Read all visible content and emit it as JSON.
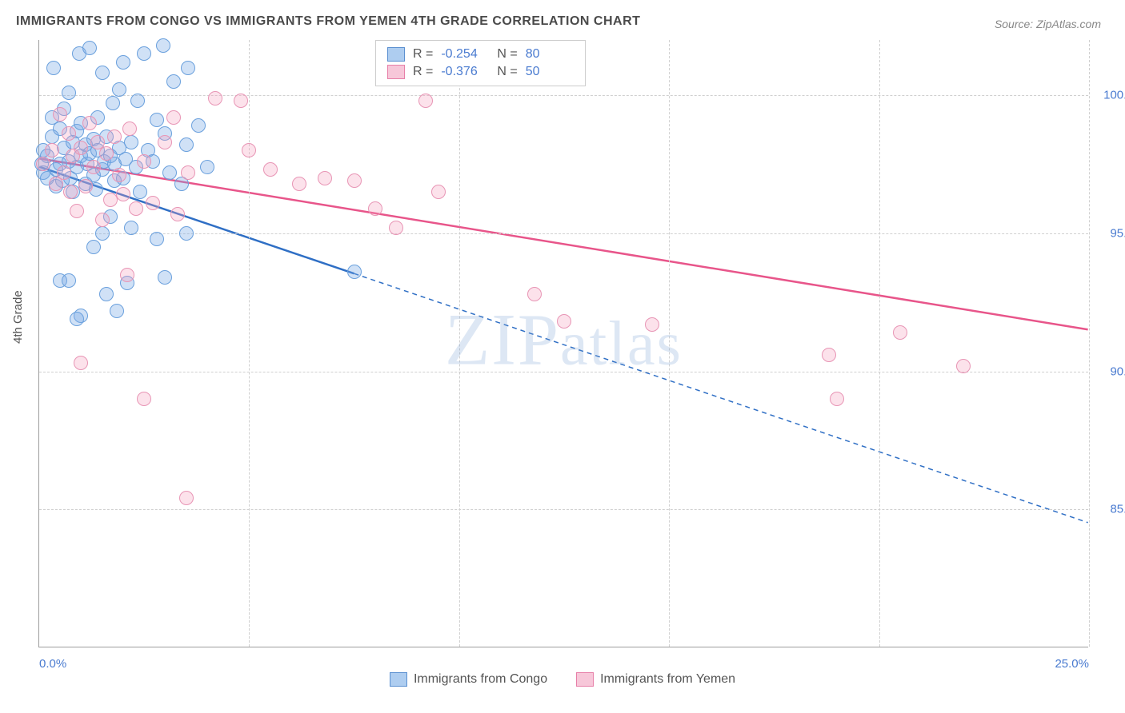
{
  "title": "IMMIGRANTS FROM CONGO VS IMMIGRANTS FROM YEMEN 4TH GRADE CORRELATION CHART",
  "source": "Source: ZipAtlas.com",
  "watermark": "ZIPatlas",
  "chart": {
    "type": "scatter",
    "ylabel": "4th Grade",
    "xlim": [
      0,
      25
    ],
    "ylim": [
      80,
      102
    ],
    "xticks": [
      {
        "pos": 0,
        "label": "0.0%"
      },
      {
        "pos": 5,
        "label": ""
      },
      {
        "pos": 10,
        "label": ""
      },
      {
        "pos": 15,
        "label": ""
      },
      {
        "pos": 20,
        "label": ""
      },
      {
        "pos": 25,
        "label": "25.0%"
      }
    ],
    "yticks": [
      {
        "pos": 100,
        "label": "100.0%"
      },
      {
        "pos": 95,
        "label": "95.0%"
      },
      {
        "pos": 90,
        "label": "90.0%"
      },
      {
        "pos": 85,
        "label": "85.0%"
      }
    ],
    "grid_color": "#d0d0d0",
    "background_color": "#ffffff",
    "marker_radius": 9,
    "marker_stroke_width": 1.5,
    "series": [
      {
        "name": "Immigrants from Congo",
        "fill_color": "rgba(120,170,230,0.35)",
        "stroke_color": "#6aa0dd",
        "swatch_fill": "#aecdf0",
        "swatch_stroke": "#5a8fd0",
        "R": "-0.254",
        "N": "80",
        "trend": {
          "x1": 0,
          "y1": 97.4,
          "x2": 25,
          "y2": 84.5,
          "solid_until_x": 7.5,
          "color": "#2f6fc5",
          "width": 2.5,
          "dash": "6,5"
        },
        "points": [
          [
            0.05,
            97.5
          ],
          [
            0.1,
            97.2
          ],
          [
            0.1,
            98.0
          ],
          [
            0.2,
            97.8
          ],
          [
            0.2,
            97.0
          ],
          [
            0.3,
            98.5
          ],
          [
            0.3,
            99.2
          ],
          [
            0.35,
            101.0
          ],
          [
            0.4,
            97.3
          ],
          [
            0.4,
            96.7
          ],
          [
            0.5,
            98.8
          ],
          [
            0.5,
            97.5
          ],
          [
            0.55,
            96.9
          ],
          [
            0.6,
            99.5
          ],
          [
            0.6,
            98.1
          ],
          [
            0.7,
            97.6
          ],
          [
            0.7,
            100.1
          ],
          [
            0.75,
            97.0
          ],
          [
            0.8,
            98.3
          ],
          [
            0.8,
            96.5
          ],
          [
            0.9,
            98.7
          ],
          [
            0.9,
            97.4
          ],
          [
            0.95,
            101.5
          ],
          [
            1.0,
            97.8
          ],
          [
            1.0,
            99.0
          ],
          [
            1.1,
            98.2
          ],
          [
            1.1,
            96.8
          ],
          [
            1.15,
            97.5
          ],
          [
            1.2,
            101.7
          ],
          [
            1.2,
            97.9
          ],
          [
            1.3,
            98.4
          ],
          [
            1.3,
            97.1
          ],
          [
            1.35,
            96.6
          ],
          [
            1.4,
            99.2
          ],
          [
            1.4,
            98.0
          ],
          [
            1.5,
            97.3
          ],
          [
            1.5,
            100.8
          ],
          [
            1.55,
            97.6
          ],
          [
            1.6,
            92.8
          ],
          [
            1.6,
            98.5
          ],
          [
            1.7,
            97.8
          ],
          [
            1.75,
            99.7
          ],
          [
            1.8,
            96.9
          ],
          [
            1.8,
            97.5
          ],
          [
            1.9,
            100.2
          ],
          [
            1.9,
            98.1
          ],
          [
            2.0,
            97.0
          ],
          [
            2.0,
            101.2
          ],
          [
            2.05,
            97.7
          ],
          [
            2.1,
            93.2
          ],
          [
            2.2,
            98.3
          ],
          [
            2.3,
            97.4
          ],
          [
            2.35,
            99.8
          ],
          [
            2.4,
            96.5
          ],
          [
            2.5,
            101.5
          ],
          [
            2.6,
            98.0
          ],
          [
            2.7,
            97.6
          ],
          [
            2.8,
            99.1
          ],
          [
            2.95,
            101.8
          ],
          [
            3.0,
            93.4
          ],
          [
            3.0,
            98.6
          ],
          [
            3.1,
            97.2
          ],
          [
            3.2,
            100.5
          ],
          [
            3.4,
            96.8
          ],
          [
            3.5,
            98.2
          ],
          [
            3.55,
            101.0
          ],
          [
            3.8,
            98.9
          ],
          [
            4.0,
            97.4
          ],
          [
            0.5,
            93.3
          ],
          [
            1.0,
            92.0
          ],
          [
            0.7,
            93.3
          ],
          [
            0.9,
            91.9
          ],
          [
            1.3,
            94.5
          ],
          [
            1.5,
            95.0
          ],
          [
            1.7,
            95.6
          ],
          [
            1.85,
            92.2
          ],
          [
            2.2,
            95.2
          ],
          [
            2.8,
            94.8
          ],
          [
            3.5,
            95.0
          ],
          [
            7.5,
            93.6
          ]
        ]
      },
      {
        "name": "Immigrants from Yemen",
        "fill_color": "rgba(245,160,190,0.30)",
        "stroke_color": "#e895b5",
        "swatch_fill": "#f7c7d9",
        "swatch_stroke": "#e77fa8",
        "R": "-0.376",
        "N": "50",
        "trend": {
          "x1": 0,
          "y1": 97.7,
          "x2": 25,
          "y2": 91.5,
          "solid_until_x": 25,
          "color": "#e8558a",
          "width": 2.5,
          "dash": "none"
        },
        "points": [
          [
            0.1,
            97.5
          ],
          [
            0.3,
            98.0
          ],
          [
            0.4,
            96.8
          ],
          [
            0.5,
            99.3
          ],
          [
            0.6,
            97.2
          ],
          [
            0.7,
            98.6
          ],
          [
            0.75,
            96.5
          ],
          [
            0.8,
            97.8
          ],
          [
            0.9,
            95.8
          ],
          [
            1.0,
            98.1
          ],
          [
            1.1,
            96.7
          ],
          [
            1.2,
            99.0
          ],
          [
            1.3,
            97.4
          ],
          [
            1.4,
            98.3
          ],
          [
            1.5,
            95.5
          ],
          [
            1.6,
            97.9
          ],
          [
            1.7,
            96.2
          ],
          [
            1.8,
            98.5
          ],
          [
            1.9,
            97.1
          ],
          [
            2.0,
            96.4
          ],
          [
            2.15,
            98.8
          ],
          [
            2.3,
            95.9
          ],
          [
            2.5,
            97.6
          ],
          [
            2.7,
            96.1
          ],
          [
            3.0,
            98.3
          ],
          [
            3.3,
            95.7
          ],
          [
            3.55,
            97.2
          ],
          [
            1.0,
            90.3
          ],
          [
            2.1,
            93.5
          ],
          [
            2.5,
            89.0
          ],
          [
            3.5,
            85.4
          ],
          [
            4.2,
            99.9
          ],
          [
            4.8,
            99.8
          ],
          [
            5.0,
            98.0
          ],
          [
            5.5,
            97.3
          ],
          [
            6.2,
            96.8
          ],
          [
            6.8,
            97.0
          ],
          [
            7.5,
            96.9
          ],
          [
            8.0,
            95.9
          ],
          [
            8.5,
            95.2
          ],
          [
            9.2,
            99.8
          ],
          [
            9.5,
            96.5
          ],
          [
            3.2,
            99.2
          ],
          [
            11.8,
            92.8
          ],
          [
            12.5,
            91.8
          ],
          [
            14.6,
            91.7
          ],
          [
            18.8,
            90.6
          ],
          [
            19.0,
            89.0
          ],
          [
            20.5,
            91.4
          ],
          [
            22.0,
            90.2
          ]
        ]
      }
    ],
    "legend_top_labels": {
      "R": "R =",
      "N": "N ="
    },
    "legend_bottom": [
      "Immigrants from Congo",
      "Immigrants from Yemen"
    ]
  }
}
